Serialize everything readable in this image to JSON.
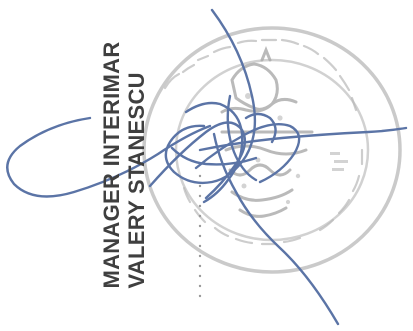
{
  "signatory": {
    "title": "MANAGER INTERIMAR",
    "name": "VALERY STANESCU"
  },
  "stamp": {
    "description": "circular official stamp, partially legible, overlaid by a handwritten signature"
  },
  "colors": {
    "text": "#3f3f3f",
    "stamp": "#b8b8b8",
    "signature": "#5b74a6",
    "background": "#ffffff"
  }
}
